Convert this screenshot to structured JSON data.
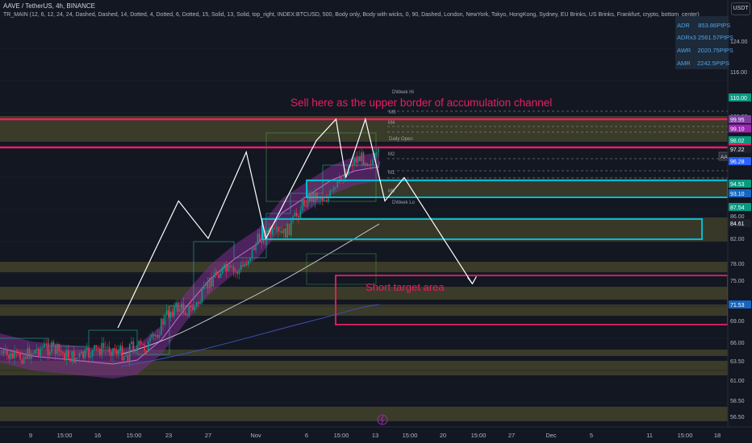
{
  "header": {
    "symbol_line": "AAVE / TetherUS, 4h, BINANCE",
    "indicator_line": "TR_MAIN (12, 6, 12, 24, 24, Dashed, Dashed, 14, Dotted, 4, Dotted, 6, Dotted, 15, Solid, 13, Solid, top_right, INDEX:BTCUSD, 500, Body only, Body with wicks, 0, 90, Dashed, London, NewYork, Tokyo, HongKong, Sydney, EU Brinks, US Brinks, Frankfurt, crypto, bottom_center)"
  },
  "currency_button": "USDT",
  "stats_table": [
    {
      "label": "ADR",
      "value": "853.86PIPS"
    },
    {
      "label": "ADRx3",
      "value": "2561.57PIPS"
    },
    {
      "label": "AWR",
      "value": "2020.75PIPS"
    },
    {
      "label": "AMR",
      "value": "2242.5PIPS"
    }
  ],
  "annotations": {
    "sell_text": "Sell here as the upper border of accumulation channel",
    "target_text": "Short  target area"
  },
  "colors": {
    "background": "#131722",
    "sell_line": "#e91e63",
    "box_cyan": "#00bcd4",
    "zone_fill": "#5b5a2e",
    "price_tag": "#e91e63"
  },
  "chart_data": {
    "type": "candlestick",
    "y_axis_ticks": [
      "124.00",
      "116.00",
      "110.00",
      "106.00",
      "99.95",
      "99.10",
      "98.02",
      "97.36",
      "97.22",
      "96.28",
      "94.53",
      "93.10",
      "87.54",
      "86.00",
      "84.61",
      "82.00",
      "78.00",
      "75.00",
      "71.53",
      "69.00",
      "66.00",
      "63.50",
      "61.00",
      "58.50",
      "56.50"
    ],
    "x_axis_ticks": [
      "9",
      "15:00",
      "16",
      "15:00",
      "23",
      "27",
      "Nov",
      "6",
      "15:00",
      "13",
      "15:00",
      "20",
      "15:00",
      "27",
      "Dec",
      "5",
      "11",
      "15:00",
      "18"
    ],
    "price_tags": [
      {
        "label": "110.00",
        "color": "#089981"
      },
      {
        "label": "99.95",
        "color": "#7b3fa0"
      },
      {
        "label": "99.10",
        "color": "#9c27b0"
      },
      {
        "label": "98.02",
        "color": "#089981"
      },
      {
        "label": "97.36",
        "color": "#e91e63"
      },
      {
        "label": "97.22",
        "color": "#1e222d"
      },
      {
        "label": "96.28",
        "color": "#2962ff"
      },
      {
        "label": "94.53",
        "color": "#089981"
      },
      {
        "label": "93.10",
        "color": "#1565c0"
      },
      {
        "label": "87.54",
        "color": "#089981"
      },
      {
        "label": "84.61",
        "color": "#1e222d"
      },
      {
        "label": "71.53",
        "color": "#1565c0"
      }
    ],
    "level_labels": [
      "DWeek Hi",
      "M4",
      "M3",
      "Daily Open",
      "M2",
      "M1",
      "M0",
      "DWeek Lo"
    ],
    "ticker_tag": "AAVEUSDT",
    "sell_levels": [
      99.95,
      97.36
    ],
    "target_zone": {
      "low": 69.0,
      "high": 76.0
    },
    "current_price": 97.22,
    "swing_path": [
      {
        "date": "Oct 18",
        "price": 68
      },
      {
        "date": "Oct 24",
        "price": 90
      },
      {
        "date": "Oct 27",
        "price": 82
      },
      {
        "date": "Oct 31",
        "price": 97
      },
      {
        "date": "Nov 2",
        "price": 82
      },
      {
        "date": "Nov 7",
        "price": 98
      },
      {
        "date": "Nov 9",
        "price": 100
      },
      {
        "date": "Nov 10",
        "price": 95
      },
      {
        "date": "Nov 12",
        "price": 100
      },
      {
        "date": "Nov 14",
        "price": 90
      },
      {
        "date": "Nov 16",
        "price": 95
      },
      {
        "date": "Nov 23",
        "price": 74.5
      }
    ],
    "price_range": [
      55,
      129
    ]
  }
}
